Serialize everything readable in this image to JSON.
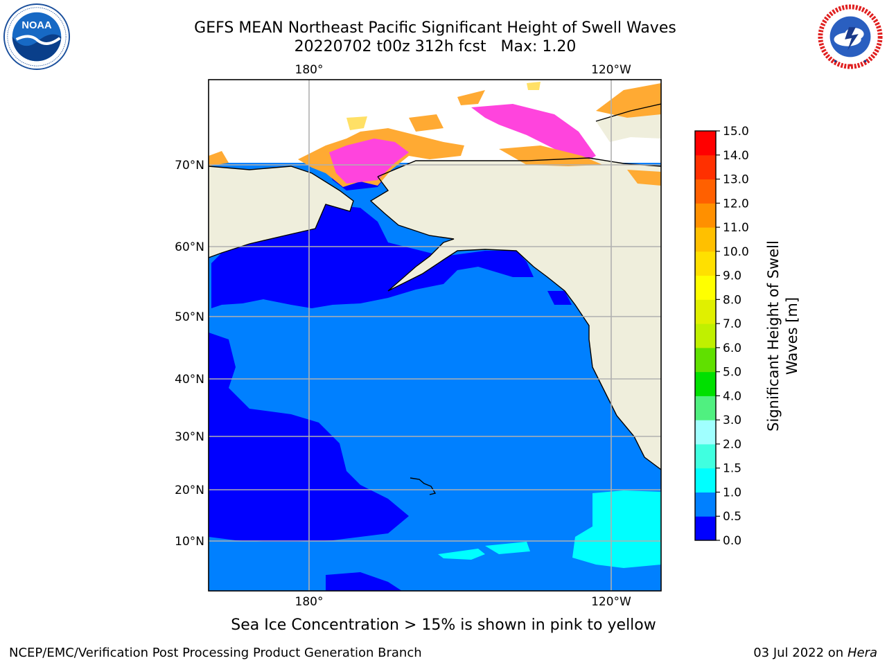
{
  "header": {
    "title_line1": "GEFS MEAN Northeast Pacific Significant Height of Swell Waves",
    "title_line2": "20220702 t00z 312h fcst   Max: 1.20"
  },
  "logos": {
    "left": {
      "name": "NOAA",
      "ring_text": "NATIONAL OCEANIC AND ATMOSPHERIC ADMINISTRATION · U.S. DEPARTMENT OF COMMERCE"
    },
    "right": {
      "name": "NATIONAL WEATHER SERVICE"
    }
  },
  "map": {
    "lat_labels": [
      "70°N",
      "60°N",
      "50°N",
      "40°N",
      "30°N",
      "20°N",
      "10°N"
    ],
    "lon_labels": [
      "180°",
      "120°W"
    ],
    "colors": {
      "land": "#efeedc",
      "ocean_0_05": "#0000ff",
      "ocean_05_10": "#0080ff",
      "ocean_10_15": "#00ffff",
      "ice_pink": "#ff44dd",
      "ice_orange": "#ffaa33",
      "ice_yellow": "#ffe066",
      "grid": "#b0b0b0"
    }
  },
  "colorbar": {
    "label_line1": "Significant Height of Swell",
    "label_line2": "Waves [m]",
    "ticks": [
      "0.0",
      "0.5",
      "1.0",
      "1.5",
      "2.0",
      "3.0",
      "4.0",
      "5.0",
      "6.0",
      "7.0",
      "8.0",
      "9.0",
      "10.0",
      "11.0",
      "12.0",
      "13.0",
      "14.0",
      "15.0"
    ],
    "colors": [
      "#0000ff",
      "#0080ff",
      "#00ffff",
      "#40ffe0",
      "#a0ffff",
      "#50f080",
      "#00e000",
      "#60e000",
      "#c0f000",
      "#e0f000",
      "#ffff00",
      "#ffe000",
      "#ffc000",
      "#ff9000",
      "#ff6000",
      "#ff3000",
      "#ff0000"
    ]
  },
  "caption": "Sea Ice Concentration > 15% is shown in pink to yellow",
  "footer": {
    "left": "NCEP/EMC/Verification Post Processing Product Generation Branch",
    "right_prefix": "03 Jul 2022 on ",
    "right_host": "Hera"
  }
}
